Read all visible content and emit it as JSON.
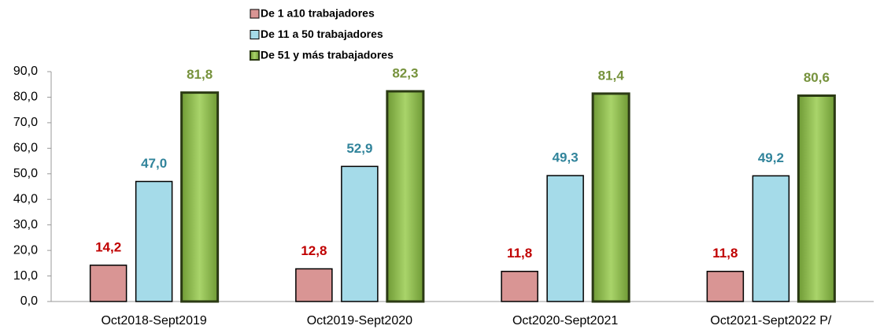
{
  "chart_data": {
    "type": "bar",
    "categories": [
      "Oct2018-Sept2019",
      "Oct2019-Sept2020",
      "Oct2020-Sept2021",
      "Oct2021-Sept2022 P/"
    ],
    "series": [
      {
        "name": "De 1 a10 trabajadores",
        "color": "#d99594",
        "label_color": "#c00000",
        "values": [
          14.2,
          12.8,
          11.8,
          11.8
        ],
        "value_labels": [
          "14,2",
          "12,8",
          "11,8",
          "11,8"
        ]
      },
      {
        "name": "De 11 a 50 trabajadores",
        "color": "#a5dbe9",
        "label_color": "#31849b",
        "values": [
          47.0,
          52.9,
          49.3,
          49.2
        ],
        "value_labels": [
          "47,0",
          "52,9",
          "49,3",
          "49,2"
        ]
      },
      {
        "name": "De 51 y más trabajadores",
        "color": "#92c050",
        "label_color": "#76923c",
        "values": [
          81.8,
          82.3,
          81.4,
          80.6
        ],
        "value_labels": [
          "81,8",
          "82,3",
          "81,4",
          "80,6"
        ]
      }
    ],
    "ylim": [
      0,
      90
    ],
    "yticks": [
      {
        "value": 0,
        "label": "0,0"
      },
      {
        "value": 10,
        "label": "10,0"
      },
      {
        "value": 20,
        "label": "20,0"
      },
      {
        "value": 30,
        "label": "30,0"
      },
      {
        "value": 40,
        "label": "40,0"
      },
      {
        "value": 50,
        "label": "50,0"
      },
      {
        "value": 60,
        "label": "60,0"
      },
      {
        "value": 70,
        "label": "70,0"
      },
      {
        "value": 80,
        "label": "80,0"
      },
      {
        "value": 90,
        "label": "90,0"
      }
    ],
    "legend": "top"
  }
}
